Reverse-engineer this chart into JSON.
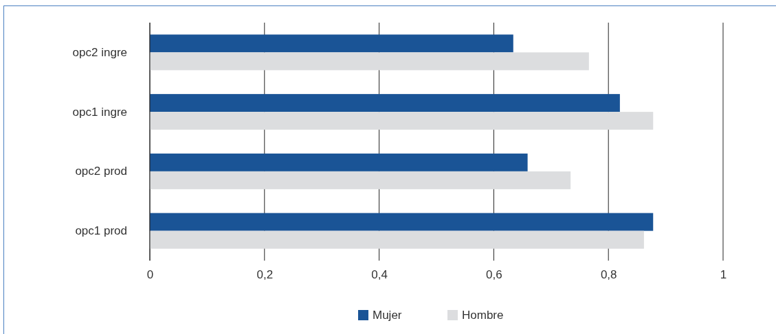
{
  "chart_data": {
    "type": "bar",
    "orientation": "horizontal",
    "categories": [
      "opc2 ingre",
      "opc1 ingre",
      "opc2 prod",
      "opc1 prod"
    ],
    "series": [
      {
        "name": "Mujer",
        "color": "#1a5496",
        "values": [
          0.634,
          0.82,
          0.659,
          0.878
        ]
      },
      {
        "name": "Hombre",
        "color": "#dcdddf",
        "values": [
          0.766,
          0.878,
          0.734,
          0.862
        ]
      }
    ],
    "xlim": [
      0,
      1
    ],
    "xticks": [
      {
        "value": 0,
        "label": "0"
      },
      {
        "value": 0.2,
        "label": "0,2"
      },
      {
        "value": 0.4,
        "label": "0,4"
      },
      {
        "value": 0.6,
        "label": "0,6"
      },
      {
        "value": 0.8,
        "label": "0,8"
      },
      {
        "value": 1,
        "label": "1"
      }
    ],
    "grid": "x",
    "legend": "bottom"
  }
}
